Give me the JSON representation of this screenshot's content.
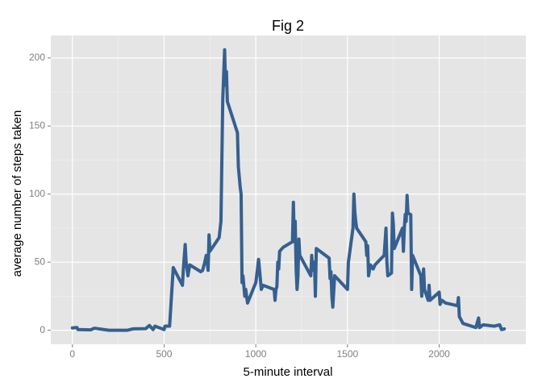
{
  "chart_data": {
    "type": "line",
    "title": "Fig 2",
    "x_label": "5-minute interval",
    "y_label": "average number of steps taken",
    "x": [
      0,
      25,
      30,
      100,
      120,
      200,
      300,
      330,
      400,
      420,
      440,
      450,
      500,
      505,
      530,
      550,
      600,
      605,
      615,
      620,
      630,
      640,
      700,
      710,
      720,
      730,
      740,
      745,
      750,
      800,
      810,
      820,
      830,
      835,
      840,
      845,
      900,
      905,
      915,
      920,
      925,
      930,
      940,
      945,
      955,
      1000,
      1005,
      1015,
      1020,
      1030,
      1040,
      1100,
      1105,
      1110,
      1115,
      1120,
      1125,
      1130,
      1150,
      1200,
      1205,
      1210,
      1215,
      1220,
      1225,
      1230,
      1235,
      1240,
      1300,
      1305,
      1310,
      1320,
      1325,
      1330,
      1400,
      1405,
      1410,
      1415,
      1420,
      1430,
      1500,
      1505,
      1530,
      1535,
      1540,
      1545,
      1550,
      1600,
      1605,
      1610,
      1615,
      1625,
      1640,
      1650,
      1700,
      1710,
      1715,
      1720,
      1740,
      1745,
      1750,
      1755,
      1800,
      1805,
      1810,
      1815,
      1820,
      1825,
      1830,
      1845,
      1850,
      1855,
      1900,
      1905,
      1910,
      1915,
      1920,
      1940,
      1945,
      1950,
      2000,
      2005,
      2015,
      2035,
      2100,
      2105,
      2110,
      2130,
      2200,
      2215,
      2220,
      2240,
      2300,
      2330,
      2340,
      2355
    ],
    "series": [
      {
        "name": "steps",
        "color": "#35608f",
        "values": [
          1.7,
          2,
          0.5,
          0.3,
          1.5,
          0,
          0,
          1,
          1.2,
          3.5,
          0.5,
          3,
          0.5,
          3,
          3,
          46,
          33,
          45,
          63,
          50,
          40,
          48,
          43,
          44,
          49,
          55,
          44,
          70,
          58,
          68,
          80,
          170,
          206,
          180,
          190,
          168,
          145,
          120,
          105,
          100,
          35,
          40,
          25,
          30,
          20,
          35,
          40,
          52,
          45,
          30,
          33,
          30,
          22,
          30,
          32,
          50,
          45,
          58,
          61,
          65,
          94,
          65,
          80,
          45,
          30,
          40,
          67,
          55,
          40,
          55,
          44,
          50,
          25,
          60,
          53,
          38,
          43,
          25,
          17,
          40,
          30,
          50,
          75,
          100,
          87,
          80,
          75,
          65,
          55,
          62,
          40,
          48,
          45,
          48,
          55,
          75,
          50,
          40,
          42,
          86,
          78,
          60,
          75,
          58,
          75,
          85,
          80,
          99,
          86,
          85,
          30,
          55,
          40,
          25,
          33,
          45,
          30,
          22,
          33,
          22,
          28,
          19,
          22,
          20,
          18,
          24,
          10,
          5,
          2,
          9,
          2,
          4,
          3,
          4,
          0.5,
          1
        ]
      }
    ],
    "xlim": [
      -117.75,
      2472.75
    ],
    "ylim": [
      -10.3,
      216.5
    ],
    "xticks": [
      0,
      500,
      1000,
      1500,
      2000
    ],
    "yticks": [
      0,
      50,
      100,
      150,
      200
    ],
    "x_minor_ticks": [
      250,
      750,
      1250,
      1750,
      2250
    ],
    "y_minor_ticks": [
      25,
      75,
      125,
      175
    ],
    "grid": true
  }
}
